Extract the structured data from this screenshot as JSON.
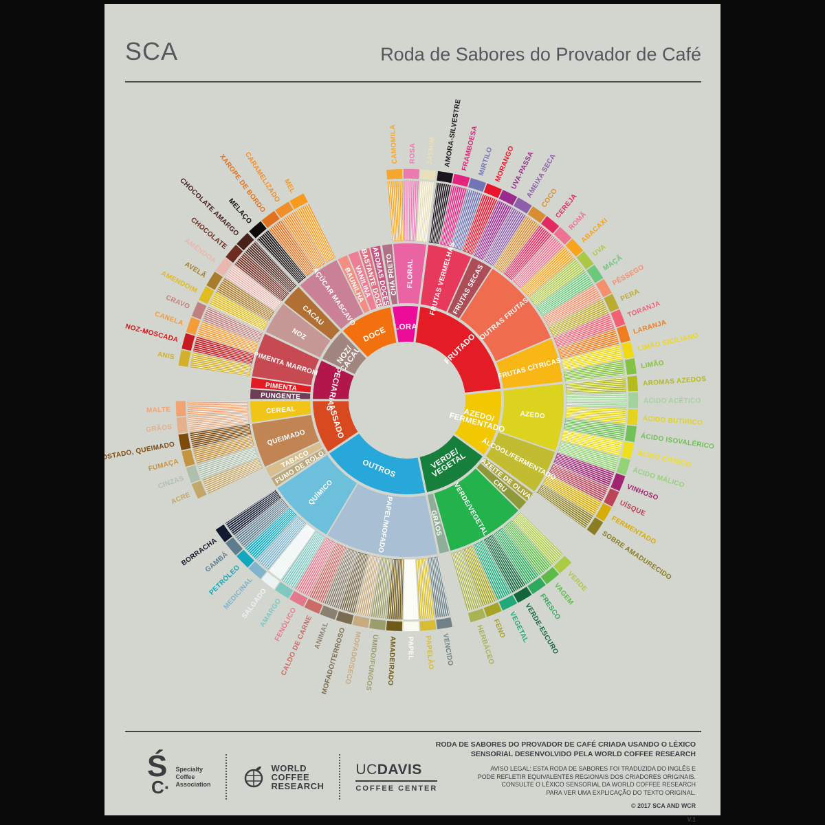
{
  "header": {
    "logo_text": "SCA",
    "title": "Roda de Sabores do Provador de Café"
  },
  "colors": {
    "page_bg": "#D3D5CF",
    "frame": "#0A0A0A",
    "text": "#3A3D40",
    "label_white": "#FFFFFF"
  },
  "chart_data": {
    "type": "sunburst",
    "title": "Roda de Sabores do Provador de Café",
    "rings": 3,
    "start_angle_deg": -9.5,
    "equal_leaf_angles": true,
    "categories": [
      {
        "label": "FLORAL",
        "color": "#ED0C9A",
        "children": [
          {
            "label": "CHÁ PRETO",
            "color": "#B06F84",
            "children": []
          },
          {
            "label": "FLORAL",
            "color": "#EA63A3",
            "children": [
              {
                "label": "CAMOMILA",
                "color": "#F6A62A"
              },
              {
                "label": "ROSA",
                "color": "#EC7BB0"
              },
              {
                "label": "JASMIM",
                "color": "#E8E0BC"
              }
            ]
          }
        ]
      },
      {
        "label": "FRUTADO",
        "color": "#E31C25",
        "children": [
          {
            "label": "FRUTAS VERMELHAS",
            "color": "#E6395B",
            "children": [
              {
                "label": "AMORA-SILVESTRE",
                "color": "#1B161B"
              },
              {
                "label": "FRAMBOESA",
                "color": "#E3237E"
              },
              {
                "label": "MIRTILO",
                "color": "#7075B5"
              },
              {
                "label": "MORANGO",
                "color": "#E8152D"
              }
            ]
          },
          {
            "label": "FRUTAS SECAS",
            "color": "#AD4D58",
            "children": [
              {
                "label": "UVA-PASSA",
                "color": "#9B2B8F"
              },
              {
                "label": "AMEIXA SECA",
                "color": "#8D5FA8"
              }
            ]
          },
          {
            "label": "OUTRAS FRUTAS",
            "color": "#EF6C4F",
            "children": [
              {
                "label": "COCO",
                "color": "#D78E33"
              },
              {
                "label": "CEREJA",
                "color": "#E4295E"
              },
              {
                "label": "ROMÃ",
                "color": "#ED7390"
              },
              {
                "label": "ABACAXI",
                "color": "#F9A21B"
              },
              {
                "label": "UVA",
                "color": "#ABC845"
              },
              {
                "label": "MAÇÃ",
                "color": "#6CC87B"
              },
              {
                "label": "PÊSSEGO",
                "color": "#F4906D"
              },
              {
                "label": "PERA",
                "color": "#BCAB31"
              }
            ]
          },
          {
            "label": "FRUTAS CÍTRICAS",
            "color": "#F8B715",
            "children": [
              {
                "label": "TORANJA",
                "color": "#F26072"
              },
              {
                "label": "LARANJA",
                "color": "#F07C1F"
              },
              {
                "label": "LIMÃO SICILIANO",
                "color": "#F0D813"
              },
              {
                "label": "LIMÃO",
                "color": "#84C341"
              }
            ]
          }
        ]
      },
      {
        "label": "AZEDO/FERMENTADO",
        "color": "#F2C802",
        "children": [
          {
            "label": "AZEDO",
            "color": "#DCD31F",
            "children": [
              {
                "label": "AROMAS AZEDOS",
                "color": "#B3BC1C"
              },
              {
                "label": "ÁCIDO ACÉTICO",
                "color": "#A2D39C"
              },
              {
                "label": "ÁCIDO BUTÍRICO",
                "color": "#E3D31C"
              },
              {
                "label": "ÁCIDO ISOVALÉRICO",
                "color": "#70C157"
              },
              {
                "label": "ÁCIDO CÍTRICO",
                "color": "#EFE01E"
              },
              {
                "label": "ÁCIDO MÁLICO",
                "color": "#94D375"
              }
            ]
          },
          {
            "label": "ÁLCOOL/FERMENTADO",
            "color": "#C2BC30",
            "children": [
              {
                "label": "VINHOSO",
                "color": "#A02470"
              },
              {
                "label": "UÍSQUE",
                "color": "#BC4458"
              },
              {
                "label": "FERMENTADO",
                "color": "#D8AC06"
              },
              {
                "label": "SOBRE AMADURECIDO",
                "color": "#8A7D24"
              }
            ]
          }
        ]
      },
      {
        "label": "VERDE/VEGETAL",
        "color": "#157F3B",
        "children": [
          {
            "label": "AZEITE DE OLIVA",
            "color": "#ACA73F",
            "children": []
          },
          {
            "label": "CRU",
            "color": "#8E9A38",
            "children": []
          },
          {
            "label": "VERDE/VEGETAL",
            "color": "#23B24B",
            "children": [
              {
                "label": "VERDE",
                "color": "#ABCB43"
              },
              {
                "label": "VAGEM",
                "color": "#5DBB49"
              },
              {
                "label": "FRESCO",
                "color": "#2FA95D"
              },
              {
                "label": "VERDE-ESCURO",
                "color": "#13663B"
              },
              {
                "label": "VEGETAL",
                "color": "#1FA878"
              },
              {
                "label": "FENO",
                "color": "#A5A425"
              },
              {
                "label": "HERBÁCEO",
                "color": "#A9B353"
              }
            ]
          },
          {
            "label": "GRÃOS",
            "color": "#8FAD97",
            "children": []
          }
        ]
      },
      {
        "label": "OUTROS",
        "color": "#28A8DA",
        "children": [
          {
            "label": "PAPEL/MOFADO",
            "color": "#A9C0D4",
            "children": [
              {
                "label": "VENCIDO",
                "color": "#6F8287"
              },
              {
                "label": "PAPELÃO",
                "color": "#D8BC33"
              },
              {
                "label": "PAPEL",
                "color": "#FBFBF2"
              },
              {
                "label": "AMADEIRADO",
                "color": "#6F5A19"
              },
              {
                "label": "ÚMIDO/FUNGOS",
                "color": "#9C9D6C"
              },
              {
                "label": "MOFADO/SECO",
                "color": "#C6AA80"
              },
              {
                "label": "MOFADO/TERROSO",
                "color": "#7A6C4F"
              },
              {
                "label": "ANIMAL",
                "color": "#8A8070"
              },
              {
                "label": "CALDO DE CARNE",
                "color": "#CC6B66"
              },
              {
                "label": "FENÓLICO",
                "color": "#E4798B"
              }
            ]
          },
          {
            "label": "QUÍMICO",
            "color": "#6CC0DC",
            "children": [
              {
                "label": "AMARGO",
                "color": "#7FC8C0"
              },
              {
                "label": "SALGADO",
                "color": "#EBF4F3"
              },
              {
                "label": "MEDICINAL",
                "color": "#7FB4CC"
              },
              {
                "label": "PETRÓLEO",
                "color": "#0FA8BE"
              },
              {
                "label": "GAMBÁ",
                "color": "#5E7C8C"
              },
              {
                "label": "BORRACHA",
                "color": "#10192E"
              }
            ]
          }
        ]
      },
      {
        "label": "ASSADO",
        "color": "#D8491F",
        "children": [
          {
            "label": "FUMO DE ROLO",
            "color": "#BCA87A",
            "children": []
          },
          {
            "label": "TABACO",
            "color": "#D9BE8D",
            "children": []
          },
          {
            "label": "QUEIMADO",
            "color": "#C08552",
            "children": [
              {
                "label": "ACRE",
                "color": "#C3A76A"
              },
              {
                "label": "CINZAS",
                "color": "#AEC0AC"
              },
              {
                "label": "FUMAÇA",
                "color": "#C69341"
              },
              {
                "label": "TOSTADO, QUEIMADO",
                "color": "#7E4B0F"
              }
            ]
          },
          {
            "label": "CEREAL",
            "color": "#F0C517",
            "children": [
              {
                "label": "GRÃOS",
                "color": "#E5B08C"
              },
              {
                "label": "MALTE",
                "color": "#F1A371"
              }
            ]
          }
        ]
      },
      {
        "label": "ESPECIARIAS",
        "color": "#B2174C",
        "children": [
          {
            "label": "PUNGENTE",
            "color": "#6E3D55",
            "children": []
          },
          {
            "label": "PIMENTA",
            "color": "#E31B23",
            "children": []
          },
          {
            "label": "PIMENTA MARROM",
            "color": "#C74A53",
            "children": [
              {
                "label": "ANIS",
                "color": "#D3AF2A"
              },
              {
                "label": "NOZ-MOSCADA",
                "color": "#C81A1E"
              },
              {
                "label": "CANELA",
                "color": "#F49D38"
              },
              {
                "label": "CRAVO",
                "color": "#C0807F"
              }
            ]
          }
        ]
      },
      {
        "label": "NOZ/CACAU",
        "color": "#A18680",
        "children": [
          {
            "label": "NOZ",
            "color": "#C59896",
            "children": [
              {
                "label": "AMENDOIM",
                "color": "#E0BC1E"
              },
              {
                "label": "AVELÃ",
                "color": "#A97C2B"
              },
              {
                "label": "AMÊNDOA",
                "color": "#EAB7AF"
              }
            ]
          },
          {
            "label": "CACAU",
            "color": "#B26F34",
            "children": [
              {
                "label": "CHOCOLATE",
                "color": "#6E2C20"
              },
              {
                "label": "CHOCOLATE AMARGO",
                "color": "#47211A"
              }
            ]
          }
        ]
      },
      {
        "label": "DOCE",
        "color": "#F2700E",
        "children": [
          {
            "label": "AÇÚCAR MASCAVO",
            "color": "#CB8195",
            "children": [
              {
                "label": "MELAÇO",
                "color": "#100B0B"
              },
              {
                "label": "XAROPE DE BORDO",
                "color": "#E2711D"
              },
              {
                "label": "CARAMELIZADO",
                "color": "#F28E28"
              },
              {
                "label": "MEL",
                "color": "#F89A1B"
              }
            ]
          },
          {
            "label": "BAUNILHA",
            "color": "#F28F82",
            "children": []
          },
          {
            "label": "VANILINA",
            "color": "#EE7D96",
            "children": []
          },
          {
            "label": "BASTANTE DOCE",
            "color": "#E17286",
            "children": []
          },
          {
            "label": "AROMAS DOCES",
            "color": "#C55480",
            "children": []
          }
        ]
      }
    ]
  },
  "footer": {
    "credit": "RODA DE SABORES DO PROVADOR DE CAFÉ CRIADA USANDO O LÉXICO\nSENSORIAL DESENVOLVIDO PELA WORLD COFFEE RESEARCH",
    "legal": "AVISO LEGAL: ESTA RODA DE SABORES FOI TRADUZIDA DO INGLÊS E\nPODE REFLETIR EQUIVALENTES REGIONAIS DOS CRIADORES ORIGINAIS.\nCONSULTE O LÉXICO SENSORIAL DA WORLD COFFEE RESEARCH\nPARA VER UMA EXPLICAÇÃO DO TEXTO ORIGINAL.",
    "copyright": "© 2017 SCA AND WCR",
    "version": "V.1",
    "sca_logo": {
      "mark": "Ś",
      "mark2": "C·",
      "text": "Specialty\nCoffee\nAssociation"
    },
    "wcr_logo": {
      "name": "WORLD\nCOFFEE\nRESEARCH",
      "tm": "™"
    },
    "ucdavis_logo": {
      "uc": "UC",
      "davis": "DAVIS",
      "sub": "COFFEE CENTER"
    }
  }
}
